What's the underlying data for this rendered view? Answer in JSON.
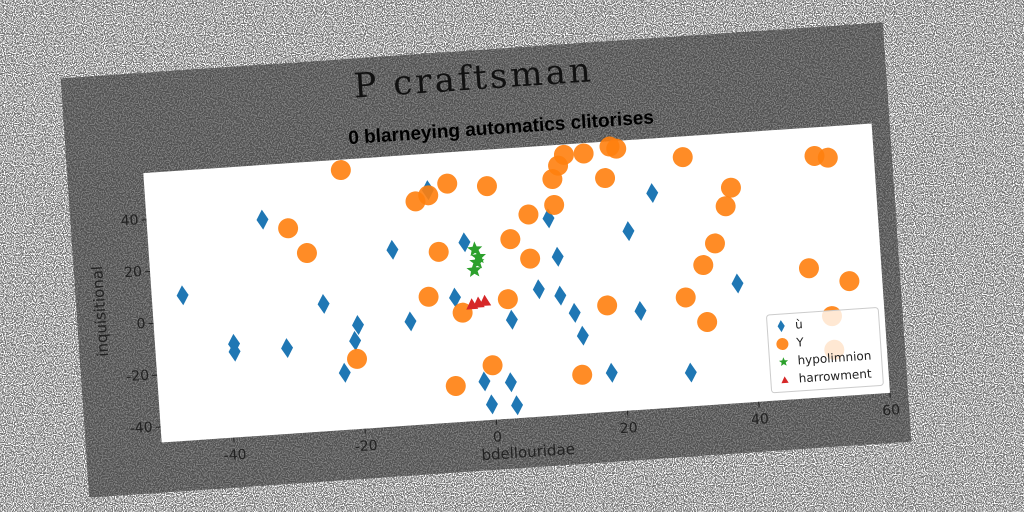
{
  "chart_data": {
    "type": "scatter",
    "title": "P craftsman",
    "subtitle": "0 blarneying automatics clitorises",
    "x_label": "bdellouridae",
    "y_label": "inquisitional",
    "xlim": [
      -51,
      60
    ],
    "ylim": [
      -46,
      58
    ],
    "xticks": [
      -40,
      -20,
      0,
      20,
      40,
      60
    ],
    "yticks": [
      -40,
      -20,
      0,
      20,
      40
    ],
    "legend": "lower right",
    "series": [
      {
        "name": "ù",
        "color": "#1f77b4",
        "marker": "diamond",
        "x": [
          -46.3,
          -33.4,
          -39,
          -39,
          -31,
          -25,
          -14,
          -20,
          -20.6,
          -22.5,
          -12,
          -8,
          -3,
          -5,
          -1.4,
          -0.5,
          2.6,
          3.3,
          3.4,
          7.8,
          10,
          11,
          11,
          13,
          14,
          18,
          22,
          23,
          26,
          30,
          38
        ],
        "values": [
          10,
          37,
          -10,
          -13,
          -13,
          3,
          22,
          -6,
          -12,
          -24,
          -6,
          44,
          23,
          2,
          -31,
          -40,
          -32,
          -41,
          -8,
          3,
          30,
          15,
          0,
          -7,
          -16,
          -31,
          23,
          -8,
          37,
          -33,
          0
        ]
      },
      {
        "name": "Y",
        "color": "#ff7f0e",
        "marker": "circle",
        "x": [
          -21,
          -29.6,
          -27,
          -20.5,
          -10,
          -8,
          -5,
          -7,
          -9,
          -4,
          -5.8,
          1,
          4,
          3,
          0,
          7,
          6.8,
          11,
          11,
          12,
          13,
          16,
          20,
          21,
          19,
          18,
          13.5,
          31,
          38,
          37,
          35,
          33,
          30,
          33,
          49,
          51,
          53,
          55,
          52,
          52
        ],
        "values": [
          54,
          33,
          23,
          -19,
          40,
          42,
          46,
          20,
          3,
          -4,
          -32,
          44,
          23,
          0,
          -25,
          32,
          15,
          35,
          45,
          50,
          54,
          54,
          56,
          55,
          44,
          -5,
          -31,
          50,
          37,
          30,
          16,
          8,
          -4,
          -14,
          4,
          47,
          46,
          -2,
          -15,
          -28
        ]
      },
      {
        "name": "hypolimnion",
        "color": "#2ca02c",
        "marker": "star",
        "x": [
          -1.5,
          -1.3,
          -1.8,
          -1
        ],
        "values": [
          20,
          15,
          12,
          17
        ]
      },
      {
        "name": "harrowment",
        "color": "#d62728",
        "marker": "triangle",
        "x": [
          -2.5,
          -1.5,
          -0.5
        ],
        "values": [
          -1,
          -0.5,
          0
        ]
      }
    ]
  }
}
